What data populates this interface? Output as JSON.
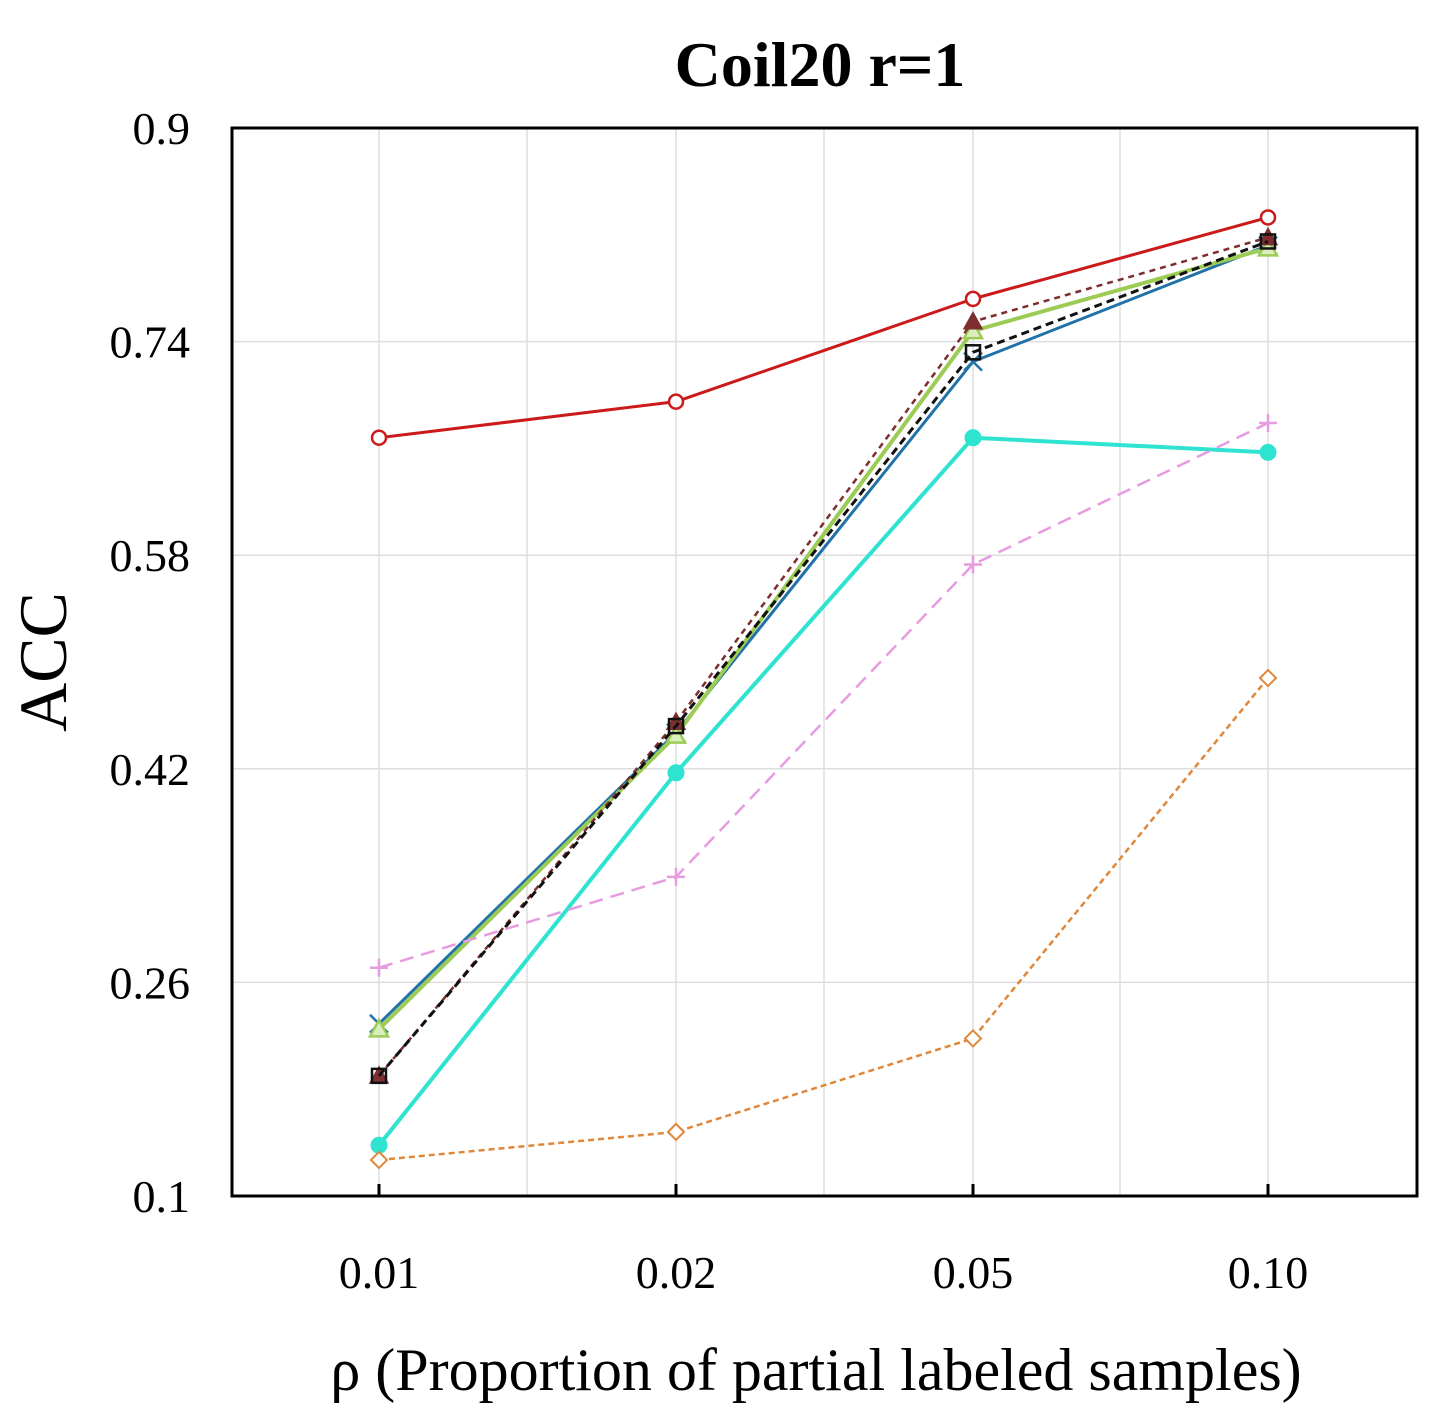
{
  "chart_data": {
    "type": "line",
    "title": "Coil20 r=1",
    "xlabel": "ρ (Proportion of partial labeled samples)",
    "ylabel": "ACC",
    "categories": [
      "0.01",
      "0.02",
      "0.05",
      "0.10"
    ],
    "yticks": [
      "0.1",
      "0.26",
      "0.42",
      "0.58",
      "0.74",
      "0.9"
    ],
    "ylim": [
      0.1,
      0.9
    ],
    "grid": true,
    "series": [
      {
        "values": [
          0.668,
          0.695,
          0.772,
          0.833
        ],
        "color": "#cc1a1a",
        "dash": "",
        "marker": "circle-open",
        "stroke_width": 3
      },
      {
        "values": [
          0.229,
          0.447,
          0.725,
          0.812
        ],
        "color": "#2172a8",
        "dash": "",
        "marker": "x",
        "stroke_width": 3
      },
      {
        "values": [
          0.225,
          0.445,
          0.748,
          0.81
        ],
        "color": "#9ccc55",
        "dash": "",
        "marker": "triangle",
        "stroke_width": 4
      },
      {
        "values": [
          0.19,
          0.455,
          0.755,
          0.818
        ],
        "color": "#7d2e2e",
        "dash": "6,5",
        "marker": "triangle-fill",
        "stroke_width": 2.5
      },
      {
        "values": [
          0.19,
          0.452,
          0.732,
          0.815
        ],
        "color": "#111111",
        "dash": "8,5",
        "marker": "square-open",
        "stroke_width": 3
      },
      {
        "values": [
          0.138,
          0.417,
          0.668,
          0.657
        ],
        "color": "#2ee3cf",
        "dash": "",
        "marker": "circle-fill",
        "stroke_width": 4
      },
      {
        "values": [
          0.271,
          0.339,
          0.573,
          0.679
        ],
        "color": "#e79be0",
        "dash": "14,8",
        "marker": "plus",
        "stroke_width": 2.5
      },
      {
        "values": [
          0.127,
          0.148,
          0.218,
          0.488
        ],
        "color": "#e0873a",
        "dash": "6,4",
        "marker": "diamond-open",
        "stroke_width": 2.5
      }
    ]
  }
}
